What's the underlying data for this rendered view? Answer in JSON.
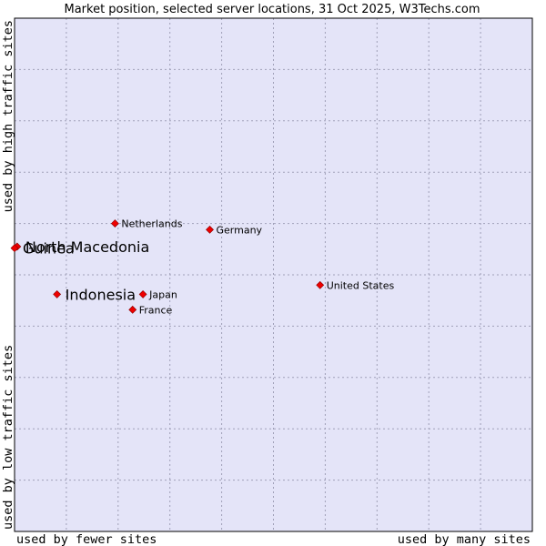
{
  "chart_data": {
    "type": "scatter",
    "title": "Market position, selected server locations, 31 Oct 2025, W3Techs.com",
    "xlabel_left": "used by fewer sites",
    "xlabel_right": "used by many sites",
    "ylabel_top": "used by high traffic sites",
    "ylabel_bottom": "used by low traffic sites",
    "xlim": [
      0,
      10
    ],
    "ylim": [
      0,
      10
    ],
    "grid": true,
    "points": [
      {
        "name": "Netherlands",
        "x": 1.94,
        "y": 6.0,
        "size": "small"
      },
      {
        "name": "Germany",
        "x": 3.77,
        "y": 5.88,
        "size": "small"
      },
      {
        "name": "North Macedonia",
        "x": 0.05,
        "y": 5.55,
        "size": "large"
      },
      {
        "name": "Guinea",
        "x": 0.0,
        "y": 5.52,
        "size": "large"
      },
      {
        "name": "United States",
        "x": 5.9,
        "y": 4.8,
        "size": "small"
      },
      {
        "name": "Indonesia",
        "x": 0.82,
        "y": 4.62,
        "size": "large"
      },
      {
        "name": "Japan",
        "x": 2.48,
        "y": 4.62,
        "size": "small"
      },
      {
        "name": "France",
        "x": 2.28,
        "y": 4.32,
        "size": "small"
      }
    ]
  },
  "colors": {
    "plot_bg": "#e4e4f8",
    "grid": "#a0a0b8",
    "marker": "#ee0000",
    "marker_edge": "#880000"
  }
}
